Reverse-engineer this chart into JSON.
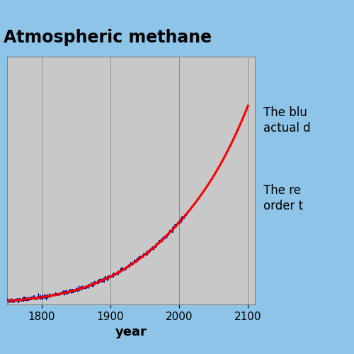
{
  "title": "Atmospheric methane",
  "xlabel": "year",
  "xlim": [
    1750,
    2110
  ],
  "ylim": [
    680,
    2100
  ],
  "xticks": [
    1800,
    1900,
    2000,
    2100
  ],
  "background_color": "#8ec4e8",
  "plot_bg_color": "#c8c8c8",
  "grid_color": "#808080",
  "title_fontsize": 17,
  "xlabel_fontsize": 13,
  "blue_line_color": "#000080",
  "red_line_color": "#FF0000",
  "text_color": "#000000",
  "annotation1": "The blu",
  "annotation1b": "actual d",
  "annotation2": "The re",
  "annotation2b": "order t",
  "annot_fontsize": 12
}
